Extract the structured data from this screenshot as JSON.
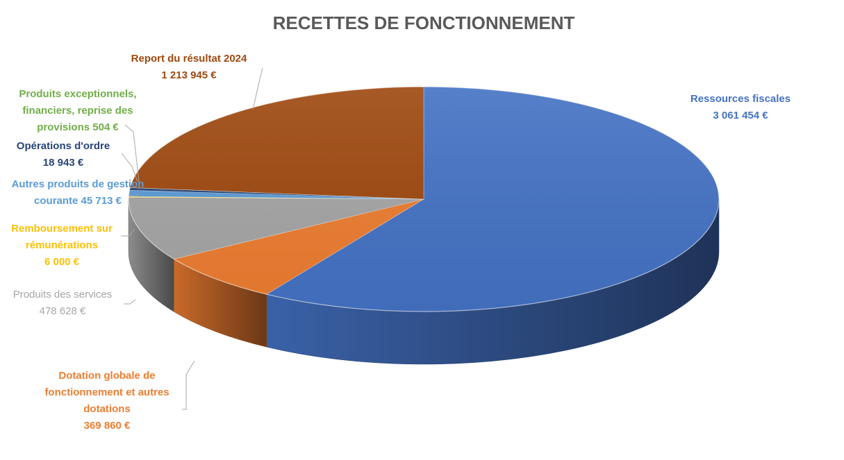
{
  "chart_data": {
    "type": "pie",
    "title": "RECETTES DE FONCTIONNEMENT",
    "currency_suffix": "€",
    "slices": [
      {
        "label": "Ressources fiscales",
        "value": 3061454,
        "value_text": "3 061 454 €",
        "color": "#4472c4",
        "label_color": "#4472c4"
      },
      {
        "label": "Dotation globale de fonctionnement et autres dotations",
        "value": 369860,
        "value_text": "369 860 €",
        "color": "#ed7d31",
        "label_color": "#ed7d31"
      },
      {
        "label": "Produits des services",
        "value": 478628,
        "value_text": "478 628 €",
        "color": "#a5a5a5",
        "label_color": "#a5a5a5"
      },
      {
        "label": "Remboursement sur rémunérations",
        "value": 6000,
        "value_text": "6 000 €",
        "color": "#ffc000",
        "label_color": "#ffc000"
      },
      {
        "label": "Autres produits de gestion courante",
        "value": 45713,
        "value_text": "45 713 €",
        "color": "#5b9bd5",
        "label_color": "#5b9bd5"
      },
      {
        "label": "Opérations d'ordre",
        "value": 18943,
        "value_text": "18 943 €",
        "color": "#264478",
        "label_color": "#264478"
      },
      {
        "label": "Produits exceptionnels, financiers, reprise des provisions",
        "value": 504,
        "value_text": "504 €",
        "color": "#70ad47",
        "label_color": "#70ad47"
      },
      {
        "label": "Report du résultat 2024",
        "value": 1213945,
        "value_text": "1 213 945 €",
        "color": "#9e480e",
        "label_color": "#9e480e"
      }
    ],
    "data_labels": [
      [
        "Ressources fiscales",
        "3 061 454 €"
      ],
      [
        "Dotation globale de",
        "fonctionnement et autres",
        "dotations",
        "369 860 €"
      ],
      [
        "Produits des services",
        "478 628 €"
      ],
      [
        "Remboursement sur",
        "rémunérations",
        "6 000 €"
      ],
      [
        "Autres produits de gestion",
        "courante 45 713 €"
      ],
      [
        "Opérations d'ordre",
        "18 943 €"
      ],
      [
        "Produits exceptionnels,",
        "financiers, reprise des",
        "provisions 504 €"
      ],
      [
        "Report du résultat 2024",
        "1 213 945 €"
      ]
    ]
  }
}
